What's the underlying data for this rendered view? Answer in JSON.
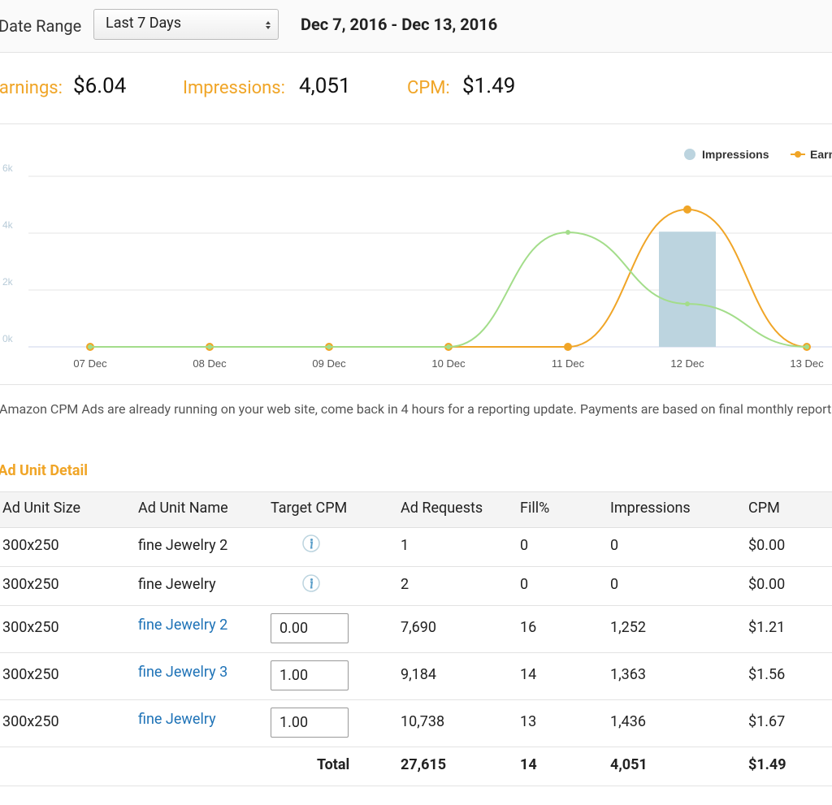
{
  "header": {
    "date_range_label": "Date Range",
    "select_value": "Last 7 Days",
    "date_span": "Dec 7, 2016 - Dec 13, 2016"
  },
  "summary": [
    {
      "label": "Earnings:",
      "value": "$6.04"
    },
    {
      "label": "Impressions:",
      "value": "4,051"
    },
    {
      "label": "CPM:",
      "value": "$1.49"
    }
  ],
  "chart_data": {
    "type": "line",
    "categories": [
      "07 Dec",
      "08 Dec",
      "09 Dec",
      "10 Dec",
      "11 Dec",
      "12 Dec",
      "13 Dec"
    ],
    "series": [
      {
        "name": "Impressions",
        "type": "bar",
        "color": "#bcd4df",
        "values": [
          0,
          0,
          0,
          0,
          0,
          4051,
          0
        ]
      },
      {
        "name": "Earnings",
        "type": "line",
        "color": "#f0a527",
        "axis": "y2",
        "values": [
          0,
          0,
          0,
          0,
          0,
          6.04,
          0
        ]
      },
      {
        "type": "line",
        "color": "#a3dd8a",
        "values": [
          0,
          0,
          0,
          0,
          4030,
          1510,
          0
        ]
      }
    ],
    "ylim": [
      0,
      6000
    ],
    "yticks": [
      {
        "value": 0,
        "label": "0k"
      },
      {
        "value": 2000,
        "label": "2k"
      },
      {
        "value": 4000,
        "label": "4k"
      },
      {
        "value": 6000,
        "label": "6k"
      }
    ],
    "y2lim": [
      0,
      7.5
    ],
    "grid": true,
    "legend": "top-right"
  },
  "note": "Amazon CPM Ads are already running on your web site, come back in 4 hours for a reporting update. Payments are based on final monthly reports.",
  "section_title": "Ad Unit Detail",
  "table": {
    "columns": [
      "Ad Unit Size",
      "Ad Unit Name",
      "Target CPM",
      "Ad Requests",
      "Fill%",
      "Impressions",
      "CPM"
    ],
    "rows": [
      {
        "size": "300x250",
        "name": "fine Jewelry 2",
        "link": false,
        "requests": "1",
        "fill": "0",
        "impressions": "0",
        "cpm": "$0.00"
      },
      {
        "size": "300x250",
        "name": "fine Jewelry",
        "link": false,
        "requests": "2",
        "fill": "0",
        "impressions": "0",
        "cpm": "$0.00"
      },
      {
        "size": "300x250",
        "name": "fine Jewelry 2",
        "link": true,
        "target_cpm": "0.00",
        "requests": "7,690",
        "fill": "16",
        "impressions": "1,252",
        "cpm": "$1.21"
      },
      {
        "size": "300x250",
        "name": "fine Jewelry 3",
        "link": true,
        "target_cpm": "1.00",
        "requests": "9,184",
        "fill": "14",
        "impressions": "1,363",
        "cpm": "$1.56"
      },
      {
        "size": "300x250",
        "name": "fine Jewelry",
        "link": true,
        "target_cpm": "1.00",
        "requests": "10,738",
        "fill": "13",
        "impressions": "1,436",
        "cpm": "$1.67"
      }
    ],
    "total": {
      "label": "Total",
      "requests": "27,615",
      "fill": "14",
      "impressions": "4,051",
      "cpm": "$1.49"
    }
  }
}
